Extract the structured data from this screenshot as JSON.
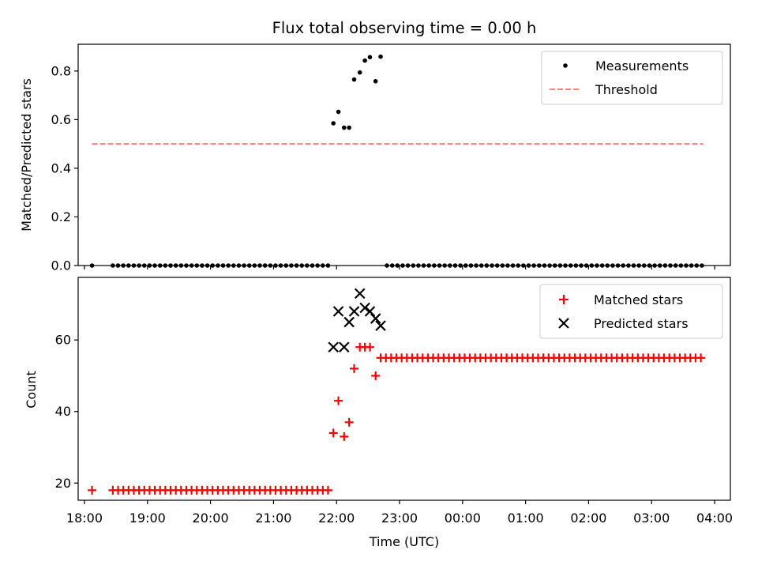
{
  "chart_data": {
    "title": "Flux total observing time = 0.00 h",
    "xlabel": "Time (UTC)",
    "x_ticks": [
      "18:00",
      "19:00",
      "20:00",
      "21:00",
      "22:00",
      "23:00",
      "00:00",
      "01:00",
      "02:00",
      "03:00",
      "04:00"
    ],
    "x_range_hours": [
      17.9,
      28.25
    ],
    "panels": [
      {
        "type": "scatter",
        "ylabel": "Matched/Predicted stars",
        "ylim": [
          0.0,
          0.91
        ],
        "y_ticks": [
          "0.0",
          "0.2",
          "0.4",
          "0.6",
          "0.8"
        ],
        "y_tick_values": [
          0.0,
          0.2,
          0.4,
          0.6,
          0.8
        ],
        "legend_position": "upper right",
        "legend": [
          {
            "label": "Measurements",
            "marker": "dot",
            "color": "#000000"
          },
          {
            "label": "Threshold",
            "marker": "dashed-line",
            "color": "#ff7f7f"
          }
        ],
        "threshold": {
          "value": 0.5,
          "x_start": 18.12,
          "x_end": 27.82
        },
        "measurements": {
          "x_zero_ranges": [
            {
              "start": 18.12,
              "count": 1,
              "step": 0.0833
            },
            {
              "start": 18.45,
              "end": 21.88,
              "step": 0.0833
            },
            {
              "start": 22.8,
              "end": 27.82,
              "step": 0.0833
            }
          ],
          "x_nonzero": [
            21.95,
            22.03,
            22.12,
            22.2,
            22.28,
            22.37,
            22.45,
            22.53,
            22.62,
            22.7
          ],
          "y_nonzero": [
            0.585,
            0.632,
            0.567,
            0.567,
            0.765,
            0.794,
            0.843,
            0.857,
            0.758,
            0.859
          ]
        }
      },
      {
        "type": "scatter",
        "ylabel": "Count",
        "ylim": [
          15.2,
          77.5
        ],
        "y_ticks": [
          "20",
          "40",
          "60"
        ],
        "y_tick_values": [
          20,
          40,
          60
        ],
        "legend_position": "upper right",
        "legend": [
          {
            "label": "Matched stars",
            "marker": "plus",
            "color": "#ff0000"
          },
          {
            "label": "Predicted stars",
            "marker": "x",
            "color": "#000000"
          }
        ],
        "matched_stars": {
          "flat_ranges": [
            {
              "start": 18.12,
              "count": 1,
              "step": 0.0833,
              "value": 18
            },
            {
              "start": 18.45,
              "end": 21.88,
              "step": 0.0833,
              "value": 18
            },
            {
              "start": 22.7,
              "end": 27.82,
              "step": 0.0833,
              "value": 55
            }
          ],
          "x_mid": [
            21.95,
            22.03,
            22.12,
            22.2,
            22.28,
            22.37,
            22.45,
            22.53,
            22.62
          ],
          "y_mid": [
            34,
            43,
            33,
            37,
            52,
            58,
            58,
            58,
            50
          ]
        },
        "predicted_stars": {
          "x": [
            21.95,
            22.03,
            22.12,
            22.2,
            22.28,
            22.37,
            22.45,
            22.53,
            22.62,
            22.7
          ],
          "y": [
            58,
            68,
            58,
            65,
            68,
            73,
            69,
            68,
            66,
            64
          ]
        }
      }
    ]
  }
}
